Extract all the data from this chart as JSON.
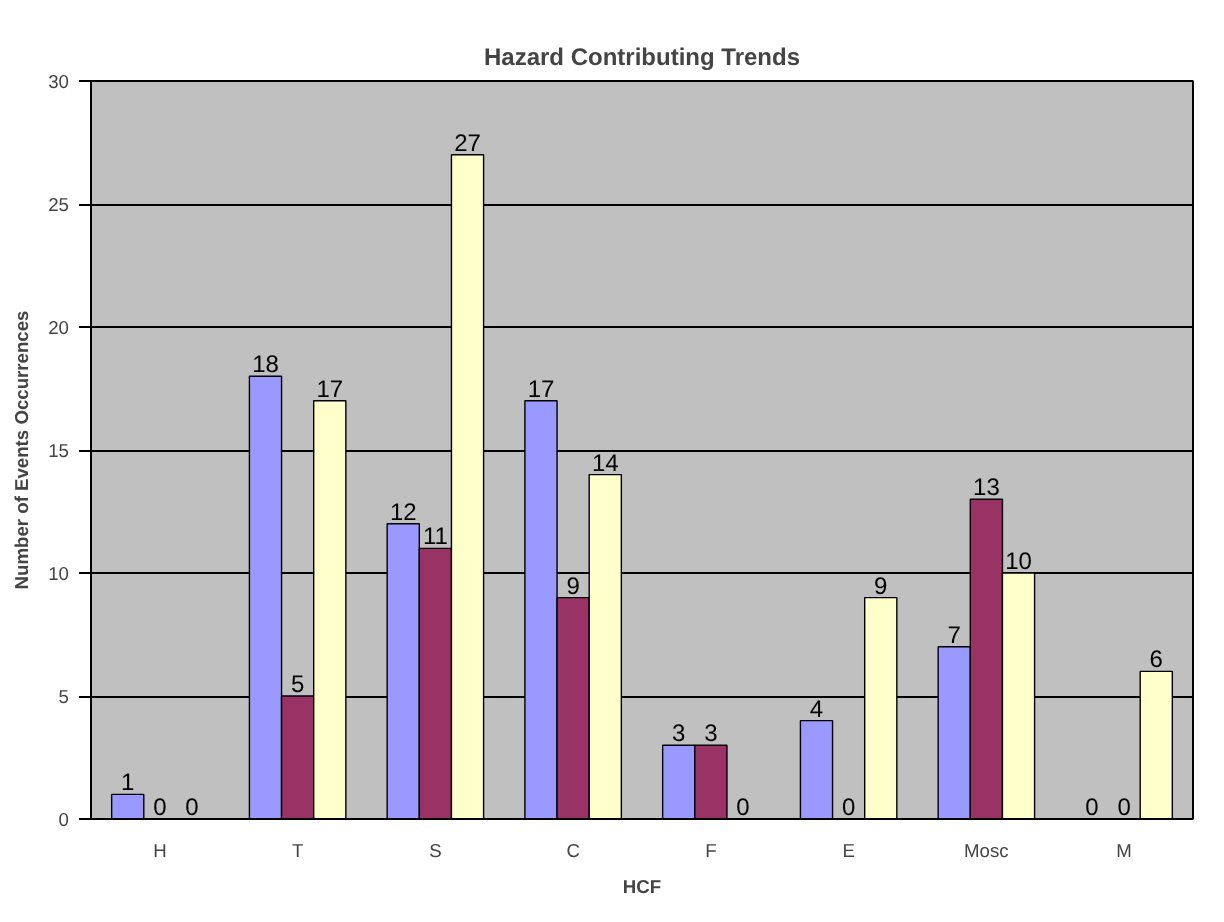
{
  "chart_data": {
    "type": "bar",
    "title": "Hazard Contributing Trends",
    "xlabel": "HCF",
    "ylabel": "Number of Events Occurrences",
    "categories": [
      "H",
      "T",
      "S",
      "C",
      "F",
      "E",
      "Mosc",
      "M"
    ],
    "series": [
      {
        "color": "#9999ff",
        "values": [
          1,
          18,
          12,
          17,
          3,
          4,
          7,
          0
        ]
      },
      {
        "color": "#993366",
        "values": [
          0,
          5,
          11,
          9,
          3,
          0,
          13,
          0
        ]
      },
      {
        "color": "#ffffcc",
        "values": [
          0,
          17,
          27,
          14,
          0,
          9,
          10,
          6
        ]
      }
    ],
    "ylim": [
      0,
      30
    ],
    "yticks": [
      0,
      5,
      10,
      15,
      20,
      25,
      30
    ],
    "grid": "y",
    "data_labels": true
  }
}
